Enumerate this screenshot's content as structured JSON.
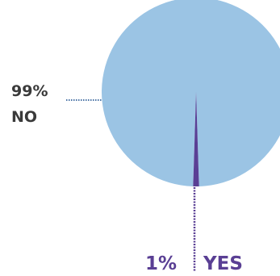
{
  "chart_data": {
    "type": "pie",
    "slices": [
      {
        "label": "NO",
        "value": 99,
        "value_text": "99%",
        "color": "#9bc4e4"
      },
      {
        "label": "YES",
        "value": 1,
        "value_text": "1%",
        "color": "#5a3f94"
      }
    ],
    "connector_colors": {
      "NO": "#4a73a6",
      "YES": "#5a3f94"
    },
    "label_colors": {
      "NO": "#3a3a3a",
      "YES": "#5a3f94"
    }
  }
}
